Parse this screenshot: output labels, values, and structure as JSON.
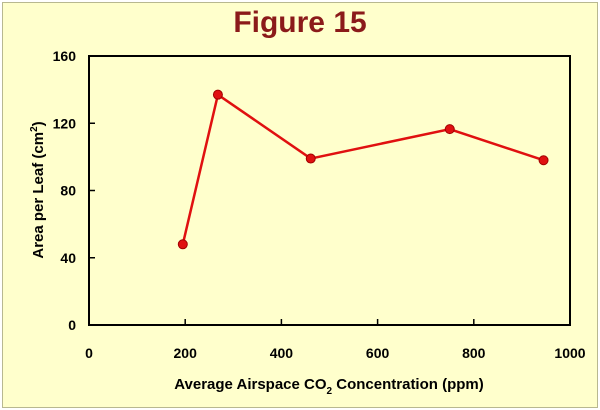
{
  "chart_data": {
    "type": "line",
    "title": "Figure 15",
    "xlabel": "Average  Airspace  CO",
    "xlabel_sub": "2",
    "xlabel_tail": "  Concentration  (ppm)",
    "ylabel": "Area  per  Leaf  (cm",
    "ylabel_sup": "2",
    "ylabel_tail": ")",
    "xlim": [
      0,
      1000
    ],
    "ylim": [
      0,
      160
    ],
    "xticks": [
      0,
      200,
      400,
      600,
      800,
      1000
    ],
    "yticks": [
      0,
      40,
      80,
      120,
      160
    ],
    "grid": false,
    "series": [
      {
        "name": "Area per Leaf",
        "color": "#e01010",
        "x": [
          195,
          268,
          461,
          750,
          945
        ],
        "y": [
          48,
          137,
          99,
          116.5,
          98
        ]
      }
    ]
  }
}
